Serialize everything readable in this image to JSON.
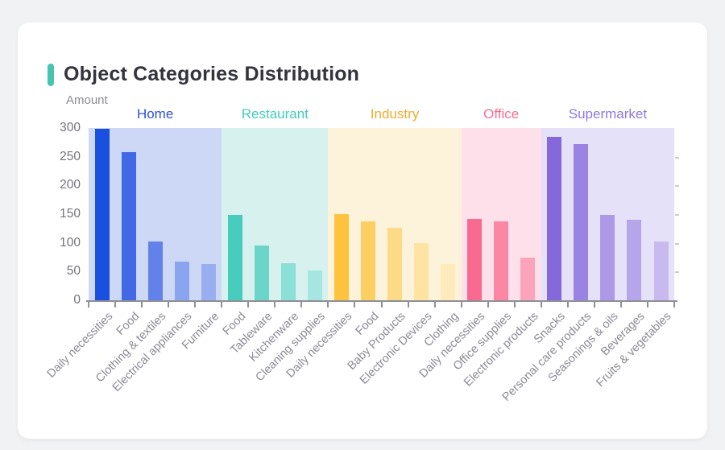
{
  "card": {
    "title": "Object Categories Distribution",
    "accent_color": "#45c4b0"
  },
  "chart_data": {
    "type": "bar",
    "title": "Object Categories Distribution",
    "ylabel": "Amount",
    "xlabel": "",
    "ylim": [
      0,
      300
    ],
    "yticks": [
      300,
      250,
      200,
      150,
      100,
      50,
      0
    ],
    "grid": false,
    "legend_position": "above-bands",
    "groups": [
      {
        "name": "Home",
        "label_color": "#2b50e0",
        "band_color": "#cdd8f6",
        "bars": [
          {
            "label": "Daily necessities",
            "value": 298,
            "color": "#1a50e0"
          },
          {
            "label": "Food",
            "value": 258,
            "color": "#4268e5"
          },
          {
            "label": "Clothing & textiles",
            "value": 102,
            "color": "#6282ea"
          },
          {
            "label": "Electrical appliances",
            "value": 68,
            "color": "#8ba4ef"
          },
          {
            "label": "Furniture",
            "value": 63,
            "color": "#98aef0"
          }
        ]
      },
      {
        "name": "Restaurant",
        "label_color": "#43ccbc",
        "band_color": "#d6f1ee",
        "bars": [
          {
            "label": "Food",
            "value": 148,
            "color": "#48ccbd"
          },
          {
            "label": "Tableware",
            "value": 96,
            "color": "#6cd5ca"
          },
          {
            "label": "Kitchenware",
            "value": 65,
            "color": "#8adfd6"
          },
          {
            "label": "Cleaning supplies",
            "value": 52,
            "color": "#a5e7e0"
          }
        ]
      },
      {
        "name": "Industry",
        "label_color": "#eeab2f",
        "band_color": "#fdf3da",
        "bars": [
          {
            "label": "Daily necessities",
            "value": 150,
            "color": "#fec33e"
          },
          {
            "label": "Food",
            "value": 138,
            "color": "#fdcf63"
          },
          {
            "label": "Baby Products",
            "value": 126,
            "color": "#fdda85"
          },
          {
            "label": "Electronic Devices",
            "value": 100,
            "color": "#fee3a3"
          },
          {
            "label": "Clothing",
            "value": 63,
            "color": "#feeabb"
          }
        ]
      },
      {
        "name": "Office",
        "label_color": "#fa6d92",
        "band_color": "#fee0ea",
        "bars": [
          {
            "label": "Daily necessities",
            "value": 142,
            "color": "#fa6a90"
          },
          {
            "label": "Office supplies",
            "value": 138,
            "color": "#fb87a4"
          },
          {
            "label": "Electronic products",
            "value": 75,
            "color": "#fca4bb"
          }
        ]
      },
      {
        "name": "Supermarket",
        "label_color": "#8d78e0",
        "band_color": "#e5e1f8",
        "bars": [
          {
            "label": "Snacks",
            "value": 285,
            "color": "#8568da"
          },
          {
            "label": "Personal care products",
            "value": 272,
            "color": "#9a83e1"
          },
          {
            "label": "Seasonings & oils",
            "value": 148,
            "color": "#ac99e7"
          },
          {
            "label": "Beverages",
            "value": 140,
            "color": "#b7a5ea"
          },
          {
            "label": "Fruits & vegetables",
            "value": 102,
            "color": "#c8baef"
          }
        ]
      }
    ]
  }
}
